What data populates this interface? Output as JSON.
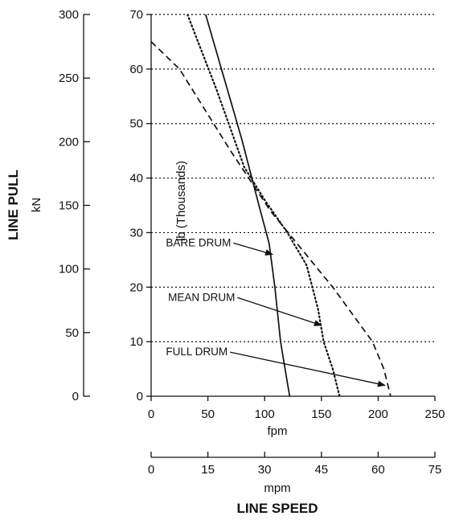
{
  "chart_data": {
    "type": "line",
    "title": "",
    "axes": {
      "y_left_outer": {
        "title": "LINE PULL",
        "unit": "kN",
        "range": [
          0,
          300
        ],
        "ticks": [
          "0",
          "50",
          "100",
          "150",
          "200",
          "250",
          "300"
        ]
      },
      "y_inner": {
        "unit": "lb (Thousands)",
        "range": [
          0,
          70
        ],
        "ticks": [
          "0",
          "10",
          "20",
          "30",
          "40",
          "50",
          "60",
          "70"
        ]
      },
      "x_primary": {
        "unit": "fpm",
        "range": [
          0,
          250
        ],
        "ticks": [
          "0",
          "50",
          "100",
          "150",
          "200",
          "250"
        ]
      },
      "x_secondary": {
        "unit": "mpm",
        "title": "LINE SPEED",
        "range": [
          0,
          75
        ],
        "ticks": [
          "0",
          "15",
          "30",
          "45",
          "60",
          "75"
        ]
      }
    },
    "grid": "horizontal dotted lines at each lb tick",
    "series": [
      {
        "name": "BARE DRUM",
        "style": "solid",
        "points": [
          [
            48,
            70
          ],
          [
            80,
            47
          ],
          [
            95,
            35
          ],
          [
            104,
            28
          ],
          [
            109,
            20
          ],
          [
            114,
            10
          ],
          [
            118,
            5
          ],
          [
            122,
            0
          ]
        ]
      },
      {
        "name": "MEAN DRUM",
        "style": "dotted",
        "points": [
          [
            32,
            70
          ],
          [
            58,
            56
          ],
          [
            82,
            42
          ],
          [
            100,
            36
          ],
          [
            120,
            30
          ],
          [
            137,
            24
          ],
          [
            147,
            16
          ],
          [
            152,
            10
          ],
          [
            160,
            5
          ],
          [
            166,
            0
          ]
        ]
      },
      {
        "name": "FULL DRUM",
        "style": "dashed",
        "points": [
          [
            0,
            65
          ],
          [
            25,
            60
          ],
          [
            70,
            45
          ],
          [
            105,
            34
          ],
          [
            160,
            20
          ],
          [
            195,
            10
          ],
          [
            205,
            5
          ],
          [
            211,
            0
          ]
        ]
      }
    ],
    "annotations": [
      {
        "label": "BARE DRUM",
        "text_at": [
          13,
          27.5
        ],
        "arrow_to": [
          107,
          26
        ]
      },
      {
        "label": "MEAN DRUM",
        "text_at": [
          15,
          17.5
        ],
        "arrow_to": [
          150,
          13
        ]
      },
      {
        "label": "FULL DRUM",
        "text_at": [
          13,
          7.5
        ],
        "arrow_to": [
          206,
          2
        ]
      }
    ]
  }
}
